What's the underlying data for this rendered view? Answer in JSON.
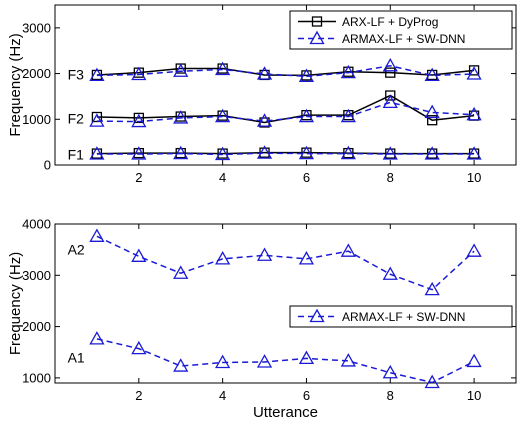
{
  "chart_data": [
    {
      "type": "line",
      "xlabel": "",
      "ylabel": "Frequency (Hz)",
      "xlim": [
        0,
        11
      ],
      "ylim": [
        0,
        3500
      ],
      "x": [
        1,
        2,
        3,
        4,
        5,
        6,
        7,
        8,
        9,
        10
      ],
      "xticks": [
        2,
        4,
        6,
        8,
        10
      ],
      "yticks": [
        0,
        1000,
        2000,
        3000
      ],
      "grid": false,
      "legend_position": "top-right",
      "annotations": [
        {
          "text": "F3",
          "x": 0.3,
          "y": 1980
        },
        {
          "text": "F2",
          "x": 0.3,
          "y": 1020
        },
        {
          "text": "F1",
          "x": 0.3,
          "y": 230
        }
      ],
      "series": [
        {
          "name": "ARX-LF + DyProg",
          "color": "#000000",
          "line_style": "solid",
          "marker": "square",
          "tracks": [
            [
              250,
              260,
              260,
              250,
              270,
              270,
              260,
              250,
              250,
              250
            ],
            [
              1050,
              1030,
              1060,
              1080,
              930,
              1090,
              1090,
              1520,
              980,
              1080
            ],
            [
              1970,
              2020,
              2110,
              2110,
              1970,
              1960,
              2040,
              2020,
              1970,
              2070
            ]
          ]
        },
        {
          "name": "ARMAX-LF + SW-DNN",
          "color": "#1a1ad6",
          "line_style": "dashed",
          "marker": "triangle",
          "tracks": [
            [
              240,
              240,
              250,
              230,
              260,
              250,
              250,
              240,
              240,
              240
            ],
            [
              960,
              950,
              1030,
              1060,
              960,
              1060,
              1060,
              1370,
              1150,
              1100
            ],
            [
              1960,
              1980,
              2050,
              2090,
              1990,
              1940,
              2020,
              2170,
              1960,
              1990
            ]
          ]
        }
      ]
    },
    {
      "type": "line",
      "xlabel": "Utterance",
      "ylabel": "Frequency (Hz)",
      "xlim": [
        0,
        11
      ],
      "ylim": [
        900,
        4000
      ],
      "x": [
        1,
        2,
        3,
        4,
        5,
        6,
        7,
        8,
        9,
        10
      ],
      "xticks": [
        2,
        4,
        6,
        8,
        10
      ],
      "yticks": [
        1000,
        2000,
        3000,
        4000
      ],
      "grid": false,
      "legend_position": "center-right",
      "annotations": [
        {
          "text": "A2",
          "x": 0.3,
          "y": 3500
        },
        {
          "text": "A1",
          "x": 0.3,
          "y": 1400
        }
      ],
      "series": [
        {
          "name": "ARMAX-LF + SW-DNN",
          "color": "#1a1ad6",
          "line_style": "dashed",
          "marker": "triangle",
          "tracks": [
            [
              3760,
              3370,
              3040,
              3320,
              3390,
              3320,
              3470,
              3020,
              2720,
              3470
            ],
            [
              1760,
              1570,
              1230,
              1300,
              1310,
              1380,
              1330,
              1100,
              910,
              1320
            ]
          ]
        }
      ]
    }
  ]
}
